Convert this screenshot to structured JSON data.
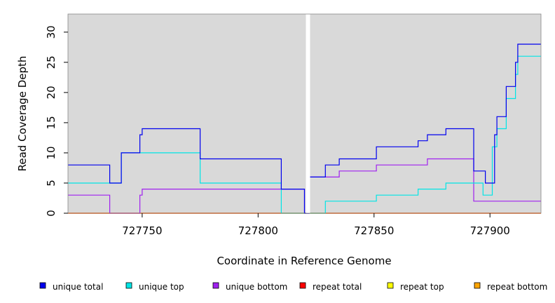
{
  "chart_data": {
    "type": "line",
    "step": true,
    "xlabel": "Coordinate in Reference Genome",
    "ylabel": "Read Coverage Depth",
    "xlim": [
      727718,
      727922
    ],
    "ylim": [
      0,
      33
    ],
    "xticks": [
      727750,
      727800,
      727850,
      727900
    ],
    "yticks": [
      0,
      5,
      10,
      15,
      20,
      25,
      30
    ],
    "grid": false,
    "background": "#d9d9d9",
    "gap": {
      "x": 727821.5
    },
    "legend_position": "bottom",
    "series": [
      {
        "name": "unique total",
        "color": "#0000ee",
        "points": [
          [
            727718,
            8
          ],
          [
            727736,
            5
          ],
          [
            727741,
            10
          ],
          [
            727749,
            13
          ],
          [
            727750,
            14
          ],
          [
            727775,
            9
          ],
          [
            727810,
            4
          ],
          [
            727820,
            0
          ],
          [
            727822,
            6
          ],
          [
            727829,
            8
          ],
          [
            727835,
            9
          ],
          [
            727851,
            11
          ],
          [
            727869,
            12
          ],
          [
            727873,
            13
          ],
          [
            727881,
            14
          ],
          [
            727893,
            7
          ],
          [
            727898,
            5
          ],
          [
            727902,
            13
          ],
          [
            727903,
            16
          ],
          [
            727907,
            21
          ],
          [
            727911,
            25
          ],
          [
            727912,
            28
          ],
          [
            727922,
            28
          ]
        ]
      },
      {
        "name": "unique top",
        "color": "#00e5e5",
        "points": [
          [
            727718,
            5
          ],
          [
            727736,
            5
          ],
          [
            727741,
            10
          ],
          [
            727775,
            5
          ],
          [
            727810,
            0
          ],
          [
            727829,
            2
          ],
          [
            727851,
            3
          ],
          [
            727869,
            4
          ],
          [
            727881,
            5
          ],
          [
            727897,
            3
          ],
          [
            727901,
            11
          ],
          [
            727903,
            14
          ],
          [
            727907,
            19
          ],
          [
            727911,
            23
          ],
          [
            727912,
            26
          ],
          [
            727922,
            26
          ]
        ]
      },
      {
        "name": "unique bottom",
        "color": "#a020f0",
        "points": [
          [
            727718,
            3
          ],
          [
            727736,
            0
          ],
          [
            727749,
            3
          ],
          [
            727750,
            4
          ],
          [
            727820,
            0
          ],
          [
            727822,
            6
          ],
          [
            727835,
            7
          ],
          [
            727851,
            8
          ],
          [
            727873,
            9
          ],
          [
            727893,
            2
          ],
          [
            727922,
            2
          ]
        ]
      },
      {
        "name": "repeat total",
        "color": "#ff0000",
        "points": [
          [
            727718,
            0
          ],
          [
            727922,
            0
          ]
        ]
      },
      {
        "name": "repeat top",
        "color": "#ffff00",
        "points": [
          [
            727718,
            0
          ],
          [
            727922,
            0
          ]
        ]
      },
      {
        "name": "repeat bottom",
        "color": "#ffa500",
        "points": [
          [
            727718,
            0
          ],
          [
            727922,
            0
          ]
        ]
      }
    ]
  }
}
